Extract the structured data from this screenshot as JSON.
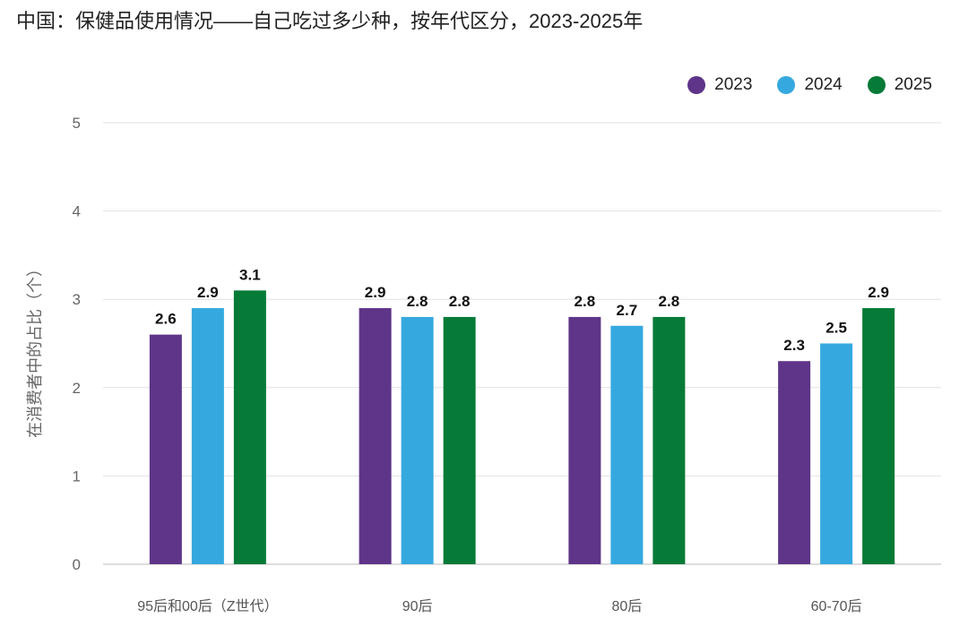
{
  "chart_data": {
    "type": "bar",
    "title": "中国：保健品使用情况——自己吃过多少种，按年代区分，2023-2025年",
    "ylabel": "在消费者中的占比（个）",
    "xlabel": "",
    "ylim": [
      0,
      5
    ],
    "yticks": [
      "0",
      "1",
      "2",
      "3",
      "4",
      "5"
    ],
    "grid": true,
    "legend_position": "top-right",
    "categories": [
      "95后和00后（Z世代）",
      "90后",
      "80后",
      "60-70后"
    ],
    "series": [
      {
        "name": "2023",
        "color": "#5E3589",
        "values": [
          2.6,
          2.9,
          2.8,
          2.3
        ]
      },
      {
        "name": "2024",
        "color": "#35A9DF",
        "values": [
          2.9,
          2.8,
          2.7,
          2.5
        ]
      },
      {
        "name": "2025",
        "color": "#067A37",
        "values": [
          3.1,
          2.8,
          2.8,
          2.9
        ]
      }
    ]
  }
}
